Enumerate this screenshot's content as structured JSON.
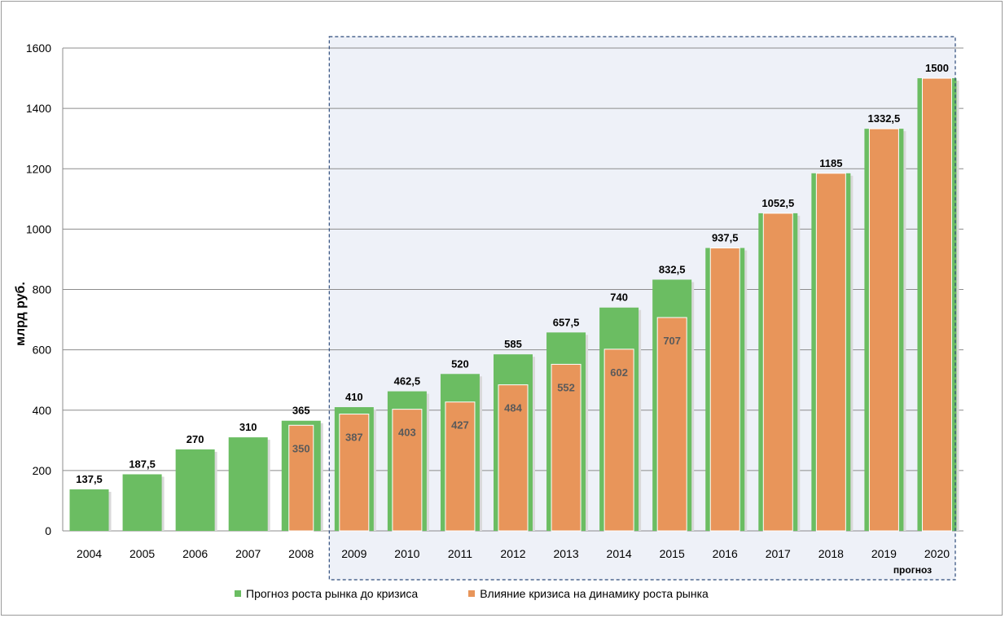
{
  "chart_data": {
    "type": "bar",
    "ylabel": "млрд руб.",
    "ylim": [
      0,
      1600
    ],
    "yticks": [
      0,
      200,
      400,
      600,
      800,
      1000,
      1200,
      1400,
      1600
    ],
    "grid": true,
    "legend_position": "bottom",
    "forecast_note": "прогноз",
    "categories": [
      "2004",
      "2005",
      "2006",
      "2007",
      "2008",
      "2009",
      "2010",
      "2011",
      "2012",
      "2013",
      "2014",
      "2015",
      "2016",
      "2017",
      "2018",
      "2019",
      "2020"
    ],
    "series": [
      {
        "name": "Прогноз роста рынка до кризиса",
        "color": "#6bbd62",
        "values": [
          137.5,
          187.5,
          270,
          310,
          365,
          410,
          462.5,
          520,
          585,
          657.5,
          740,
          832.5,
          937.5,
          1052.5,
          1185,
          1332.5,
          1500
        ],
        "labels": [
          "137,5",
          "187,5",
          "270",
          "310",
          "365",
          "410",
          "462,5",
          "520",
          "585",
          "657,5",
          "740",
          "832,5",
          "937,5",
          "1052,5",
          "1185",
          "1332,5",
          "1500"
        ]
      },
      {
        "name": "Влияние кризиса на динамику роста рынка",
        "color": "#e8955a",
        "values": [
          null,
          null,
          null,
          null,
          350,
          387,
          403,
          427,
          484,
          552,
          602,
          707,
          937.5,
          1052.5,
          1185,
          1332.5,
          1500
        ],
        "labels": [
          "",
          "",
          "",
          "",
          "350",
          "387",
          "403",
          "427",
          "484",
          "552",
          "602",
          "707",
          "",
          "",
          "",
          "",
          ""
        ]
      }
    ]
  }
}
